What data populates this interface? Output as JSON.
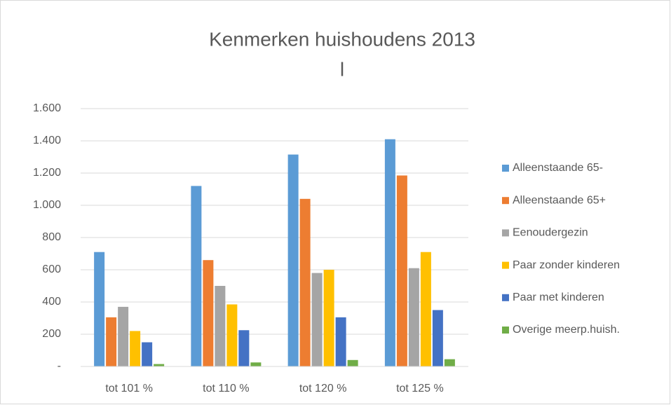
{
  "chart_data": {
    "type": "bar",
    "title": "Kenmerken huishoudens 2013",
    "subtitle": "l",
    "categories": [
      "tot 101 %",
      "tot 110 %",
      "tot 120 %",
      "tot 125 %"
    ],
    "series": [
      {
        "name": "Alleenstaande 65-",
        "color": "#5b9bd5",
        "values": [
          710,
          1120,
          1315,
          1410
        ]
      },
      {
        "name": "Alleenstaande 65+",
        "color": "#ed7d31",
        "values": [
          305,
          660,
          1040,
          1185
        ]
      },
      {
        "name": "Eenoudergezin",
        "color": "#a5a5a5",
        "values": [
          370,
          500,
          580,
          610
        ]
      },
      {
        "name": "Paar zonder kinderen",
        "color": "#ffc000",
        "values": [
          220,
          385,
          600,
          710
        ]
      },
      {
        "name": "Paar met kinderen",
        "color": "#4472c4",
        "values": [
          150,
          225,
          305,
          350
        ]
      },
      {
        "name": "Overige meerp.huish.",
        "color": "#70ad47",
        "values": [
          15,
          25,
          40,
          45
        ]
      }
    ],
    "ylim": [
      0,
      1600
    ],
    "yticks": [
      {
        "value": 0,
        "label": "-"
      },
      200,
      400,
      600,
      800,
      {
        "value": 1000,
        "label": "1.000"
      },
      {
        "value": 1200,
        "label": "1.200"
      },
      {
        "value": 1400,
        "label": "1.400"
      },
      {
        "value": 1600,
        "label": "1.600"
      }
    ],
    "grid": true,
    "legend": "right"
  }
}
